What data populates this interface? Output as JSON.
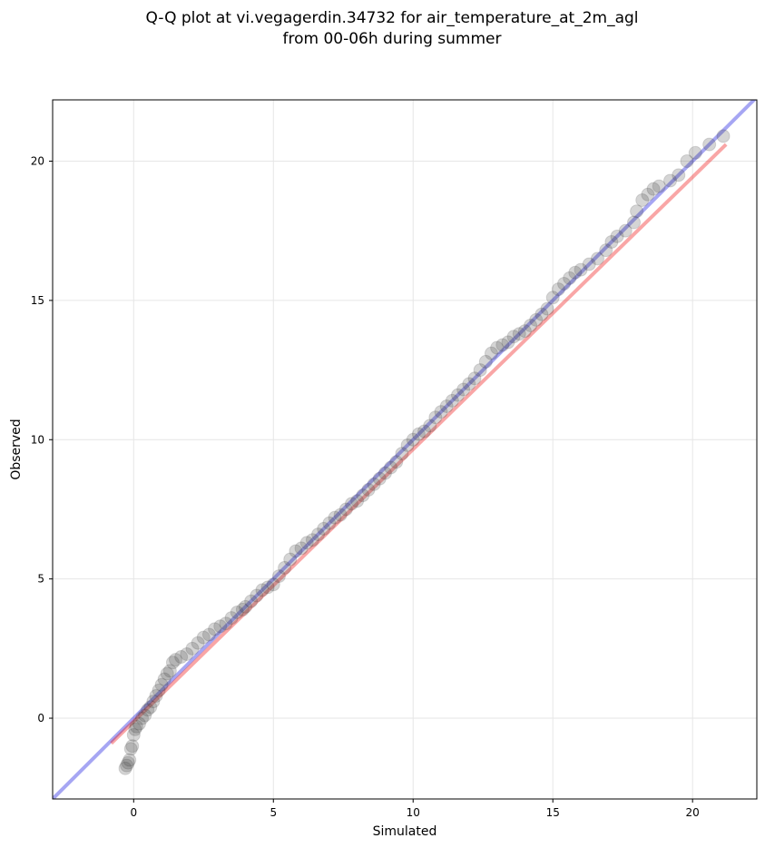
{
  "chart_data": {
    "type": "scatter",
    "title_lines": [
      "Q-Q plot at vi.vegagerdin.34732 for air_temperature_at_2m_agl",
      "from 00-06h during summer"
    ],
    "xlabel": "Simulated",
    "ylabel": "Observed",
    "xlim": [
      -2.9,
      22.3
    ],
    "ylim": [
      -2.9,
      22.2
    ],
    "xticks": [
      0,
      5,
      10,
      15,
      20
    ],
    "yticks": [
      0,
      5,
      10,
      15,
      20
    ],
    "grid": true,
    "colors": {
      "points": "#404040",
      "identity_line": "#0000dd",
      "fit_line": "#ee0000"
    },
    "identity_line": {
      "x": [
        -2.9,
        22.3
      ],
      "y": [
        -2.9,
        22.3
      ]
    },
    "fit_line": {
      "x": [
        -0.8,
        21.2
      ],
      "y": [
        -0.9,
        20.6
      ]
    },
    "points": {
      "x": [
        -0.3,
        -0.25,
        -0.2,
        -0.15,
        -0.1,
        -0.05,
        0.0,
        0.05,
        0.1,
        0.2,
        0.3,
        0.4,
        0.5,
        0.6,
        0.7,
        0.8,
        0.9,
        1.0,
        1.1,
        1.2,
        1.3,
        1.4,
        1.5,
        1.7,
        1.9,
        2.1,
        2.3,
        2.5,
        2.7,
        2.9,
        3.1,
        3.3,
        3.5,
        3.7,
        3.9,
        4.0,
        4.2,
        4.4,
        4.6,
        4.8,
        5.0,
        5.2,
        5.4,
        5.6,
        5.8,
        6.0,
        6.2,
        6.4,
        6.6,
        6.8,
        7.0,
        7.2,
        7.4,
        7.6,
        7.8,
        8.0,
        8.2,
        8.4,
        8.6,
        8.8,
        9.0,
        9.2,
        9.4,
        9.6,
        9.8,
        10.0,
        10.2,
        10.4,
        10.6,
        10.8,
        11.0,
        11.2,
        11.4,
        11.6,
        11.8,
        12.0,
        12.2,
        12.4,
        12.6,
        12.8,
        13.0,
        13.2,
        13.4,
        13.6,
        13.8,
        14.0,
        14.2,
        14.4,
        14.6,
        14.8,
        15.0,
        15.2,
        15.4,
        15.6,
        15.8,
        16.0,
        16.3,
        16.6,
        16.9,
        17.1,
        17.3,
        17.6,
        17.9,
        18.0,
        18.2,
        18.4,
        18.6,
        18.8,
        19.2,
        19.5,
        19.8,
        20.1,
        20.6,
        21.1
      ],
      "y": [
        -1.8,
        -1.7,
        -1.6,
        -1.5,
        -1.1,
        -1.0,
        -0.6,
        -0.4,
        -0.3,
        -0.2,
        0.0,
        0.1,
        0.3,
        0.4,
        0.6,
        0.8,
        1.0,
        1.2,
        1.4,
        1.6,
        1.7,
        2.0,
        2.1,
        2.2,
        2.3,
        2.5,
        2.7,
        2.9,
        3.0,
        3.2,
        3.3,
        3.4,
        3.6,
        3.8,
        3.9,
        4.0,
        4.2,
        4.4,
        4.6,
        4.7,
        4.8,
        5.1,
        5.4,
        5.7,
        6.0,
        6.1,
        6.3,
        6.4,
        6.6,
        6.8,
        7.0,
        7.2,
        7.3,
        7.5,
        7.7,
        7.8,
        8.0,
        8.2,
        8.4,
        8.6,
        8.8,
        9.0,
        9.2,
        9.5,
        9.8,
        10.0,
        10.2,
        10.3,
        10.5,
        10.8,
        11.0,
        11.2,
        11.4,
        11.6,
        11.8,
        12.0,
        12.2,
        12.5,
        12.8,
        13.1,
        13.3,
        13.4,
        13.5,
        13.7,
        13.8,
        13.9,
        14.1,
        14.3,
        14.5,
        14.7,
        15.1,
        15.4,
        15.6,
        15.8,
        16.0,
        16.1,
        16.3,
        16.5,
        16.8,
        17.1,
        17.3,
        17.5,
        17.8,
        18.2,
        18.6,
        18.8,
        19.0,
        19.1,
        19.3,
        19.5,
        20.0,
        20.3,
        20.6,
        20.9
      ]
    }
  }
}
